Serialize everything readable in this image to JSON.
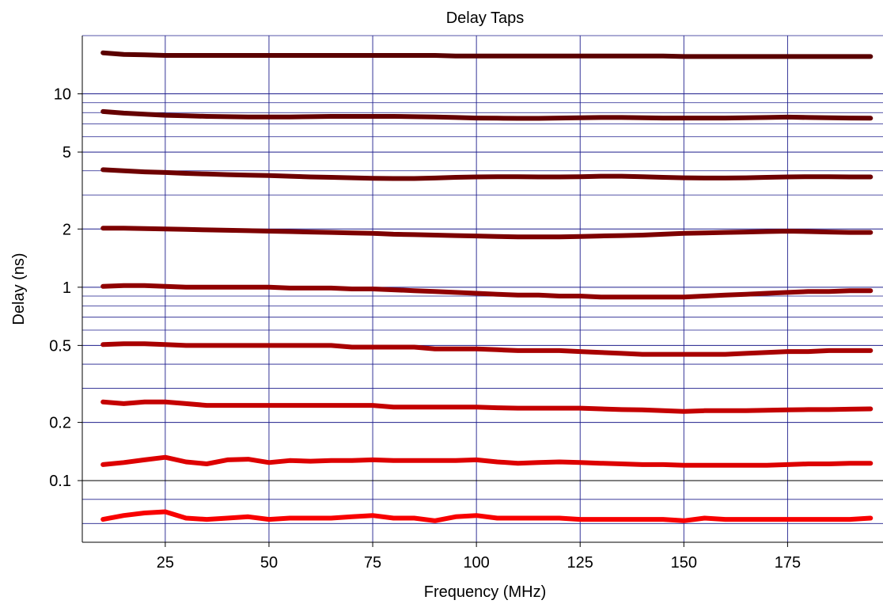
{
  "chart_data": {
    "type": "line",
    "title": "Delay Taps",
    "xlabel": "Frequency (MHz)",
    "ylabel": "Delay (ns)",
    "xlim": [
      5,
      198
    ],
    "ylim": [
      0.048,
      20
    ],
    "y_scale": "log",
    "grid": true,
    "x_ticks": [
      25,
      50,
      75,
      100,
      125,
      150,
      175
    ],
    "y_tick_labels": [
      {
        "value": 0.1,
        "label": "0.1"
      },
      {
        "value": 0.2,
        "label": "0.2"
      },
      {
        "value": 0.5,
        "label": "0.5"
      },
      {
        "value": 1,
        "label": "1"
      },
      {
        "value": 2,
        "label": "2"
      },
      {
        "value": 5,
        "label": "5"
      },
      {
        "value": 10,
        "label": "10"
      }
    ],
    "y_gridlines": [
      0.06,
      0.08,
      0.1,
      0.2,
      0.3,
      0.4,
      0.5,
      0.6,
      0.7,
      0.8,
      0.9,
      1,
      2,
      3,
      4,
      5,
      6,
      7,
      8,
      9,
      10,
      20
    ],
    "x": [
      10,
      15,
      20,
      25,
      30,
      35,
      40,
      45,
      50,
      55,
      60,
      65,
      70,
      75,
      80,
      85,
      90,
      95,
      100,
      105,
      110,
      115,
      120,
      125,
      130,
      135,
      140,
      145,
      150,
      155,
      160,
      165,
      170,
      175,
      180,
      185,
      190,
      195
    ],
    "series": [
      {
        "color": "#5a0000",
        "values": [
          16.3,
          16.0,
          15.9,
          15.8,
          15.8,
          15.8,
          15.8,
          15.8,
          15.8,
          15.8,
          15.8,
          15.8,
          15.8,
          15.8,
          15.8,
          15.8,
          15.8,
          15.7,
          15.7,
          15.7,
          15.7,
          15.7,
          15.7,
          15.7,
          15.7,
          15.7,
          15.7,
          15.7,
          15.6,
          15.6,
          15.6,
          15.6,
          15.6,
          15.6,
          15.6,
          15.6,
          15.6,
          15.6
        ]
      },
      {
        "color": "#650000",
        "values": [
          8.1,
          7.95,
          7.85,
          7.75,
          7.7,
          7.65,
          7.62,
          7.6,
          7.6,
          7.6,
          7.62,
          7.65,
          7.65,
          7.65,
          7.65,
          7.62,
          7.6,
          7.55,
          7.5,
          7.48,
          7.47,
          7.47,
          7.5,
          7.52,
          7.55,
          7.55,
          7.52,
          7.5,
          7.5,
          7.5,
          7.5,
          7.52,
          7.55,
          7.58,
          7.55,
          7.52,
          7.5,
          7.48
        ]
      },
      {
        "color": "#6e0000",
        "values": [
          4.05,
          4.0,
          3.95,
          3.92,
          3.88,
          3.85,
          3.82,
          3.8,
          3.78,
          3.75,
          3.72,
          3.7,
          3.68,
          3.66,
          3.65,
          3.65,
          3.67,
          3.7,
          3.72,
          3.73,
          3.73,
          3.72,
          3.72,
          3.73,
          3.75,
          3.75,
          3.73,
          3.7,
          3.68,
          3.67,
          3.67,
          3.68,
          3.7,
          3.72,
          3.73,
          3.73,
          3.72,
          3.72
        ]
      },
      {
        "color": "#7d0000",
        "values": [
          2.02,
          2.02,
          2.01,
          2.0,
          1.99,
          1.98,
          1.97,
          1.96,
          1.95,
          1.94,
          1.93,
          1.92,
          1.91,
          1.9,
          1.88,
          1.87,
          1.86,
          1.85,
          1.84,
          1.83,
          1.82,
          1.82,
          1.82,
          1.83,
          1.84,
          1.85,
          1.86,
          1.88,
          1.9,
          1.91,
          1.92,
          1.93,
          1.94,
          1.95,
          1.94,
          1.93,
          1.92,
          1.92
        ]
      },
      {
        "color": "#900000",
        "values": [
          1.01,
          1.02,
          1.02,
          1.01,
          1.0,
          1.0,
          1.0,
          1.0,
          1.0,
          0.99,
          0.99,
          0.99,
          0.98,
          0.98,
          0.97,
          0.96,
          0.95,
          0.94,
          0.93,
          0.92,
          0.91,
          0.91,
          0.9,
          0.9,
          0.89,
          0.89,
          0.89,
          0.89,
          0.89,
          0.9,
          0.91,
          0.92,
          0.93,
          0.94,
          0.95,
          0.95,
          0.96,
          0.96
        ]
      },
      {
        "color": "#a80000",
        "values": [
          0.505,
          0.51,
          0.51,
          0.505,
          0.5,
          0.5,
          0.5,
          0.5,
          0.5,
          0.5,
          0.5,
          0.5,
          0.49,
          0.49,
          0.49,
          0.49,
          0.48,
          0.48,
          0.48,
          0.475,
          0.47,
          0.47,
          0.47,
          0.465,
          0.46,
          0.455,
          0.45,
          0.45,
          0.45,
          0.45,
          0.45,
          0.455,
          0.46,
          0.465,
          0.465,
          0.47,
          0.47,
          0.47
        ]
      },
      {
        "color": "#c40000",
        "values": [
          0.255,
          0.25,
          0.255,
          0.255,
          0.25,
          0.245,
          0.245,
          0.245,
          0.245,
          0.245,
          0.245,
          0.245,
          0.245,
          0.245,
          0.24,
          0.24,
          0.24,
          0.24,
          0.24,
          0.238,
          0.237,
          0.237,
          0.237,
          0.237,
          0.235,
          0.233,
          0.232,
          0.23,
          0.228,
          0.23,
          0.23,
          0.23,
          0.231,
          0.232,
          0.233,
          0.233,
          0.234,
          0.235
        ]
      },
      {
        "color": "#dd0000",
        "values": [
          0.121,
          0.124,
          0.128,
          0.132,
          0.125,
          0.122,
          0.128,
          0.129,
          0.124,
          0.127,
          0.126,
          0.127,
          0.127,
          0.128,
          0.127,
          0.127,
          0.127,
          0.127,
          0.128,
          0.125,
          0.123,
          0.124,
          0.125,
          0.124,
          0.123,
          0.122,
          0.121,
          0.121,
          0.12,
          0.12,
          0.12,
          0.12,
          0.12,
          0.121,
          0.122,
          0.122,
          0.123,
          0.123
        ]
      },
      {
        "color": "#f80000",
        "values": [
          0.063,
          0.066,
          0.068,
          0.069,
          0.064,
          0.063,
          0.064,
          0.065,
          0.063,
          0.064,
          0.064,
          0.064,
          0.065,
          0.066,
          0.064,
          0.064,
          0.062,
          0.065,
          0.066,
          0.064,
          0.064,
          0.064,
          0.064,
          0.063,
          0.063,
          0.063,
          0.063,
          0.063,
          0.062,
          0.064,
          0.063,
          0.063,
          0.063,
          0.063,
          0.063,
          0.063,
          0.063,
          0.064
        ]
      }
    ]
  }
}
